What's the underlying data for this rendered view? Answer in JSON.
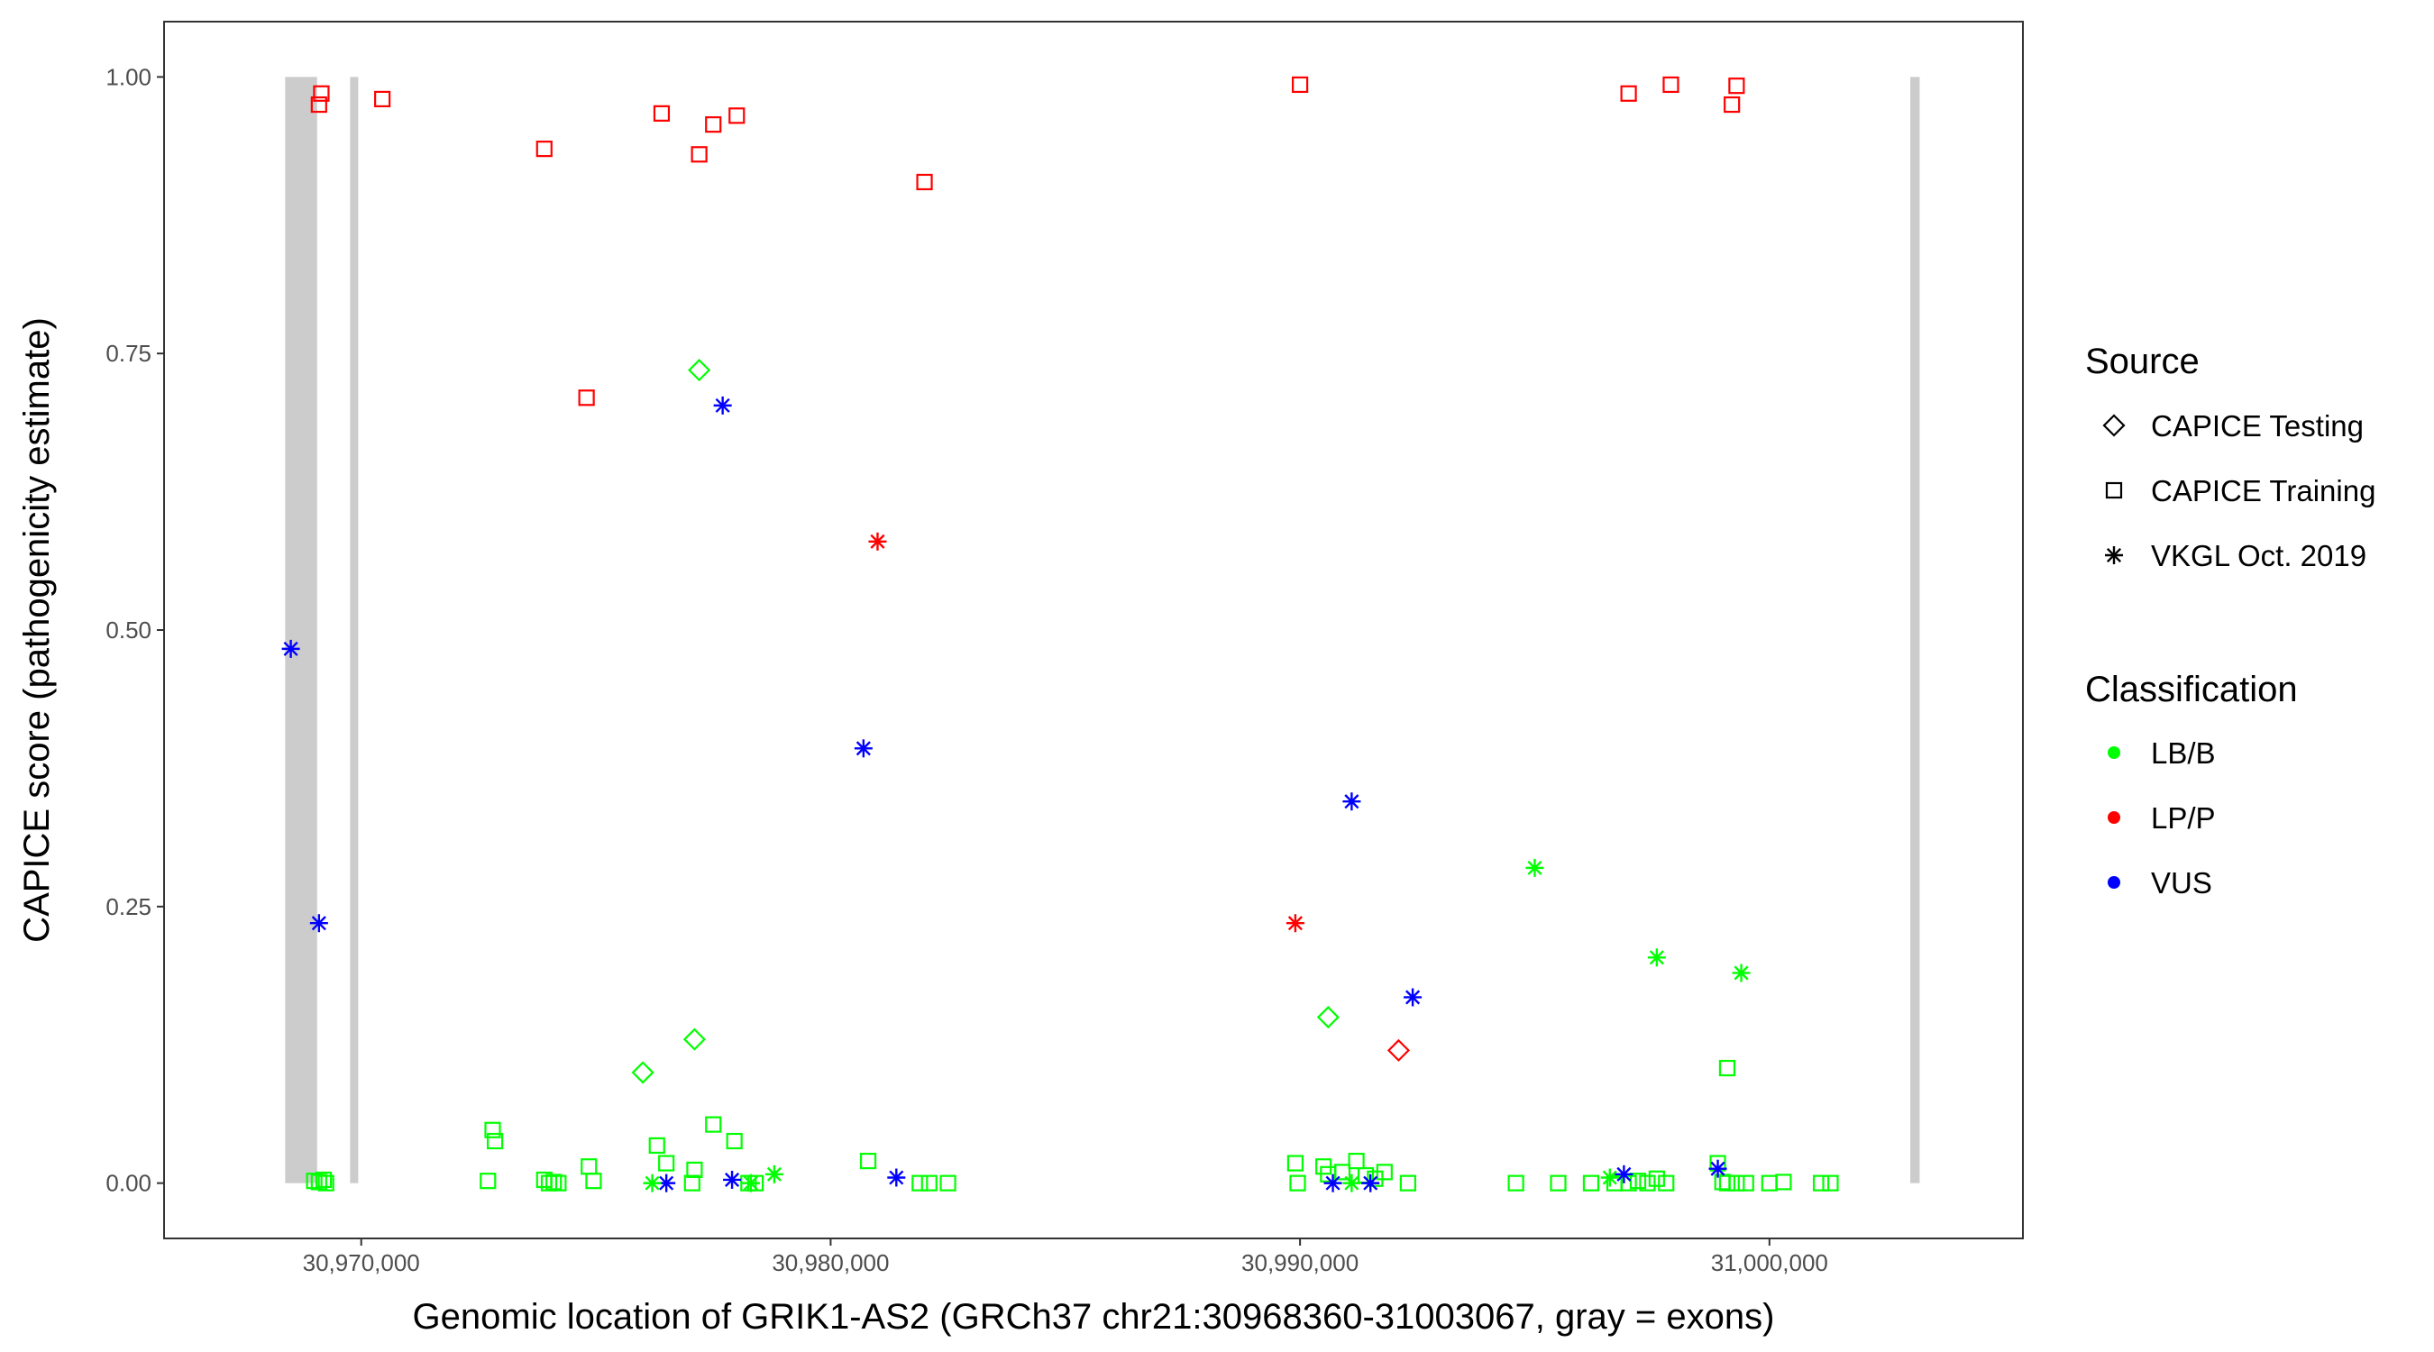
{
  "chart_data": {
    "type": "scatter",
    "title": "",
    "xlabel": "Genomic location of GRIK1-AS2 (GRCh37 chr21:30968360-31003067, gray = exons)",
    "ylabel": "CAPICE score (pathogenicity estimate)",
    "xlim": [
      30965800,
      31005400
    ],
    "ylim": [
      -0.05,
      1.05
    ],
    "x_ticks": [
      30970000,
      30980000,
      30990000,
      31000000
    ],
    "x_tick_labels": [
      "30,970,000",
      "30,980,000",
      "30,990,000",
      "31,000,000"
    ],
    "y_ticks": [
      0,
      0.25,
      0.5,
      0.75,
      1
    ],
    "y_tick_labels": [
      "0.00",
      "0.25",
      "0.50",
      "0.75",
      "1.00"
    ],
    "grid": false,
    "exons": [
      {
        "start": 30968380,
        "end": 30969060
      },
      {
        "start": 30969800,
        "end": 30969900
      },
      {
        "start": 31003000,
        "end": 31003200
      }
    ],
    "legend": {
      "placement": "right",
      "source_title": "Source",
      "source_items": [
        {
          "label": "CAPICE Testing",
          "shape": "diamond"
        },
        {
          "label": "CAPICE Training",
          "shape": "square"
        },
        {
          "label": "VKGL Oct. 2019",
          "shape": "asterisk"
        }
      ],
      "class_title": "Classification",
      "class_items": [
        {
          "label": "LB/B",
          "color": "#00ff00"
        },
        {
          "label": "LP/P",
          "color": "#ff0000"
        },
        {
          "label": "VUS",
          "color": "#0000ff"
        }
      ]
    },
    "colors": {
      "LB/B": "#00ff00",
      "LP/P": "#ff0000",
      "VUS": "#0000ff",
      "exon": "#cccccc"
    },
    "series": [
      {
        "source": "CAPICE Training",
        "classification": "LP/P",
        "points": [
          [
            30969150,
            0.985
          ],
          [
            30969100,
            0.975
          ],
          [
            30970450,
            0.98
          ],
          [
            30973900,
            0.935
          ],
          [
            30976400,
            0.967
          ],
          [
            30977200,
            0.93
          ],
          [
            30977500,
            0.957
          ],
          [
            30978000,
            0.965
          ],
          [
            30974800,
            0.71
          ],
          [
            30982000,
            0.905
          ],
          [
            30990000,
            0.993
          ],
          [
            30997000,
            0.985
          ],
          [
            30997900,
            0.993
          ],
          [
            30999200,
            0.975
          ],
          [
            30999300,
            0.992
          ]
        ]
      },
      {
        "source": "CAPICE Training",
        "classification": "LB/B",
        "points": [
          [
            30969000,
            0.002
          ],
          [
            30969100,
            0.001
          ],
          [
            30969200,
            0.003
          ],
          [
            30969250,
            0.0
          ],
          [
            30972800,
            0.048
          ],
          [
            30972850,
            0.038
          ],
          [
            30972700,
            0.002
          ],
          [
            30973900,
            0.003
          ],
          [
            30974000,
            0.0
          ],
          [
            30974100,
            0.001
          ],
          [
            30974200,
            0.0
          ],
          [
            30974850,
            0.015
          ],
          [
            30974950,
            0.002
          ],
          [
            30976300,
            0.034
          ],
          [
            30976500,
            0.018
          ],
          [
            30977100,
            0.012
          ],
          [
            30977050,
            0.0
          ],
          [
            30977500,
            0.053
          ],
          [
            30977950,
            0.038
          ],
          [
            30978250,
            0.0
          ],
          [
            30978400,
            0.0
          ],
          [
            30980800,
            0.02
          ],
          [
            30981900,
            0.0
          ],
          [
            30982100,
            0.0
          ],
          [
            30982500,
            0.0
          ],
          [
            30989900,
            0.018
          ],
          [
            30989950,
            0.0
          ],
          [
            30990500,
            0.015
          ],
          [
            30990600,
            0.008
          ],
          [
            30990900,
            0.01
          ],
          [
            30991200,
            0.02
          ],
          [
            30991400,
            0.007
          ],
          [
            30991600,
            0.004
          ],
          [
            30991800,
            0.01
          ],
          [
            30992300,
            0.0
          ],
          [
            30994600,
            0.0
          ],
          [
            30995500,
            0.0
          ],
          [
            30996200,
            0.0
          ],
          [
            30996700,
            0.0
          ],
          [
            30997000,
            0.0
          ],
          [
            30997200,
            0.002
          ],
          [
            30997400,
            0.0
          ],
          [
            30997600,
            0.004
          ],
          [
            30997800,
            0.0
          ],
          [
            30998900,
            0.018
          ],
          [
            30999000,
            0.001
          ],
          [
            30999100,
            0.0
          ],
          [
            30999300,
            0.0
          ],
          [
            30999500,
            0.0
          ],
          [
            30999100,
            0.104
          ],
          [
            31000000,
            0.0
          ],
          [
            31000300,
            0.001
          ],
          [
            31001100,
            0.0
          ],
          [
            31001300,
            0.0
          ]
        ]
      },
      {
        "source": "CAPICE Testing",
        "classification": "LB/B",
        "points": [
          [
            30977200,
            0.735
          ],
          [
            30977100,
            0.13
          ],
          [
            30976000,
            0.1
          ],
          [
            30990600,
            0.15
          ]
        ]
      },
      {
        "source": "CAPICE Testing",
        "classification": "LP/P",
        "points": [
          [
            30992100,
            0.12
          ]
        ]
      },
      {
        "source": "VKGL Oct. 2019",
        "classification": "VUS",
        "points": [
          [
            30968500,
            0.483
          ],
          [
            30969100,
            0.235
          ],
          [
            30977700,
            0.703
          ],
          [
            30980700,
            0.393
          ],
          [
            30991100,
            0.345
          ],
          [
            30992400,
            0.168
          ],
          [
            30976500,
            0.0
          ],
          [
            30977900,
            0.003
          ],
          [
            30981400,
            0.005
          ],
          [
            30990700,
            0.0
          ],
          [
            30991500,
            0.0
          ],
          [
            30996900,
            0.008
          ],
          [
            30998900,
            0.013
          ]
        ]
      },
      {
        "source": "VKGL Oct. 2019",
        "classification": "LP/P",
        "points": [
          [
            30981000,
            0.58
          ],
          [
            30989900,
            0.235
          ]
        ]
      },
      {
        "source": "VKGL Oct. 2019",
        "classification": "LB/B",
        "points": [
          [
            30995000,
            0.285
          ],
          [
            30997600,
            0.204
          ],
          [
            30999400,
            0.19
          ],
          [
            30976200,
            0.0
          ],
          [
            30978800,
            0.008
          ],
          [
            30978300,
            0.0
          ],
          [
            30991100,
            0.0
          ],
          [
            30996600,
            0.005
          ]
        ]
      }
    ]
  }
}
